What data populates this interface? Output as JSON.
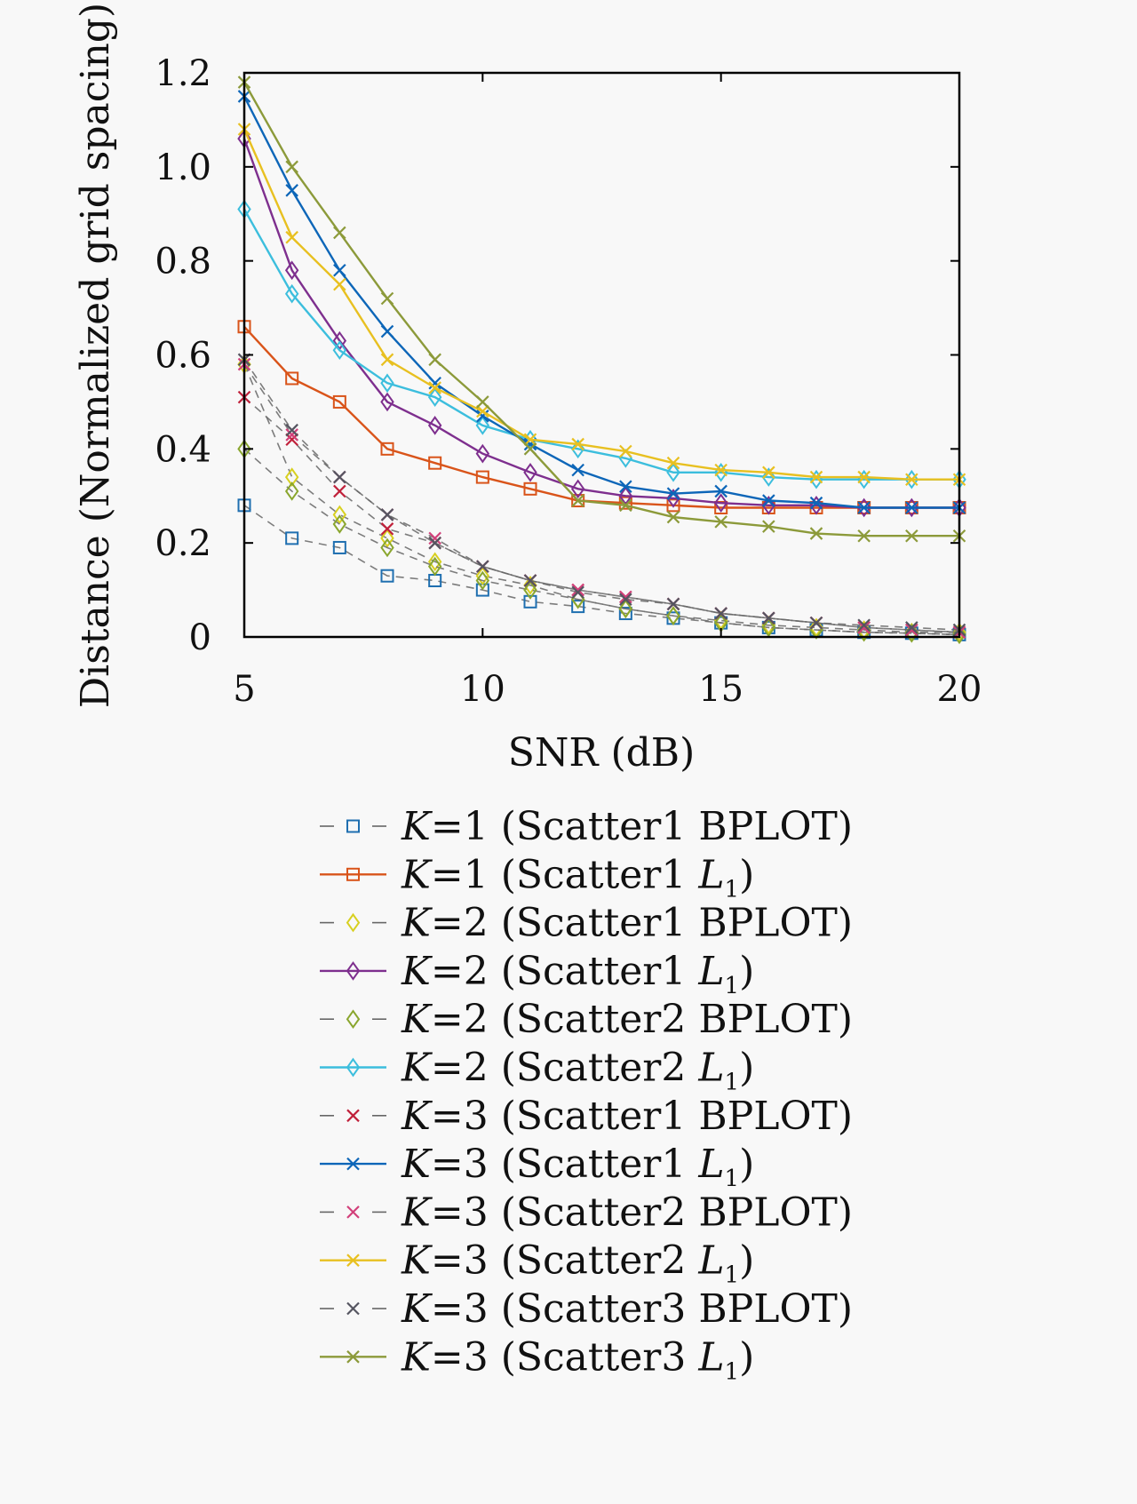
{
  "chart_data": {
    "type": "line",
    "title": "",
    "xlabel": "SNR (dB)",
    "ylabel": "Distance (Normalized grid spacing)",
    "xlim": [
      5,
      20
    ],
    "ylim": [
      0,
      1.2
    ],
    "xticks": [
      5,
      10,
      15,
      20
    ],
    "xtick_labels": [
      "5",
      "10",
      "15",
      "20"
    ],
    "yticks": [
      0,
      0.2,
      0.4,
      0.6,
      0.8,
      1.0,
      1.2
    ],
    "ytick_labels": [
      "0",
      "0.2",
      "0.4",
      "0.6",
      "0.8",
      "1.0",
      "1.2"
    ],
    "grid": false,
    "legend_position": "below",
    "x": [
      5,
      6,
      7,
      8,
      9,
      10,
      11,
      12,
      13,
      14,
      15,
      16,
      17,
      18,
      19,
      20
    ],
    "series": [
      {
        "name": "K=1 (Scatter1 BPLOT)",
        "k": "K",
        "rest": "=1 (Scatter1 BPLOT)",
        "sub": "",
        "color": "#1f6fb0",
        "marker": "square",
        "dash": true,
        "values": [
          0.28,
          0.21,
          0.19,
          0.13,
          0.12,
          0.1,
          0.075,
          0.065,
          0.05,
          0.04,
          0.03,
          0.02,
          0.015,
          0.01,
          0.008,
          0.005
        ]
      },
      {
        "name": "K=1 (Scatter1 L1)",
        "k": "K",
        "rest": "=1 (Scatter1 L",
        "sub": "1",
        "color": "#d9541a",
        "marker": "square",
        "dash": false,
        "values": [
          0.66,
          0.55,
          0.5,
          0.4,
          0.37,
          0.34,
          0.315,
          0.29,
          0.285,
          0.28,
          0.275,
          0.275,
          0.275,
          0.275,
          0.275,
          0.275
        ]
      },
      {
        "name": "K=2 (Scatter1 BPLOT)",
        "k": "K",
        "rest": "=2 (Scatter1 BPLOT)",
        "sub": "",
        "color": "#d8d020",
        "marker": "diamond",
        "dash": true,
        "values": [
          0.58,
          0.34,
          0.26,
          0.21,
          0.16,
          0.13,
          0.11,
          0.08,
          0.06,
          0.045,
          0.035,
          0.025,
          0.02,
          0.015,
          0.01,
          0.01
        ]
      },
      {
        "name": "K=2 (Scatter1 L1)",
        "k": "K",
        "rest": "=2 (Scatter1 L",
        "sub": "1",
        "color": "#7e2f8e",
        "marker": "diamond",
        "dash": false,
        "values": [
          1.06,
          0.78,
          0.63,
          0.5,
          0.45,
          0.39,
          0.35,
          0.315,
          0.3,
          0.295,
          0.285,
          0.28,
          0.28,
          0.275,
          0.275,
          0.275
        ]
      },
      {
        "name": "K=2 (Scatter2 BPLOT)",
        "k": "K",
        "rest": "=2 (Scatter2 BPLOT)",
        "sub": "",
        "color": "#8aa62e",
        "marker": "diamond",
        "dash": true,
        "values": [
          0.4,
          0.31,
          0.24,
          0.19,
          0.15,
          0.12,
          0.1,
          0.08,
          0.06,
          0.045,
          0.03,
          0.02,
          0.015,
          0.01,
          0.008,
          0.005
        ]
      },
      {
        "name": "K=2 (Scatter2 L1)",
        "k": "K",
        "rest": "=2 (Scatter2 L",
        "sub": "1",
        "color": "#3cbedd",
        "marker": "diamond",
        "dash": false,
        "values": [
          0.91,
          0.73,
          0.61,
          0.54,
          0.51,
          0.45,
          0.42,
          0.4,
          0.38,
          0.35,
          0.35,
          0.34,
          0.335,
          0.335,
          0.335,
          0.335
        ]
      },
      {
        "name": "K=3 (Scatter1 BPLOT)",
        "k": "K",
        "rest": "=3 (Scatter1 BPLOT)",
        "sub": "",
        "color": "#c0203a",
        "marker": "x",
        "dash": true,
        "values": [
          0.51,
          0.42,
          0.31,
          0.23,
          0.2,
          0.15,
          0.12,
          0.1,
          0.085,
          0.07,
          0.05,
          0.04,
          0.03,
          0.02,
          0.015,
          0.01
        ]
      },
      {
        "name": "K=3 (Scatter1 L1)",
        "k": "K",
        "rest": "=3 (Scatter1 L",
        "sub": "1",
        "color": "#0d66b8",
        "marker": "x",
        "dash": false,
        "values": [
          1.15,
          0.95,
          0.78,
          0.65,
          0.54,
          0.47,
          0.41,
          0.355,
          0.32,
          0.305,
          0.31,
          0.29,
          0.285,
          0.275,
          0.275,
          0.275
        ]
      },
      {
        "name": "K=3 (Scatter2 BPLOT)",
        "k": "K",
        "rest": "=3 (Scatter2 BPLOT)",
        "sub": "",
        "color": "#d2407a",
        "marker": "x",
        "dash": true,
        "values": [
          0.58,
          0.43,
          0.34,
          0.26,
          0.21,
          0.15,
          0.12,
          0.1,
          0.085,
          0.07,
          0.05,
          0.04,
          0.03,
          0.02,
          0.015,
          0.01
        ]
      },
      {
        "name": "K=3 (Scatter2 L1)",
        "k": "K",
        "rest": "=3 (Scatter2 L",
        "sub": "1",
        "color": "#e8c020",
        "marker": "x",
        "dash": false,
        "values": [
          1.08,
          0.85,
          0.75,
          0.59,
          0.53,
          0.48,
          0.42,
          0.41,
          0.395,
          0.37,
          0.355,
          0.35,
          0.34,
          0.34,
          0.335,
          0.335
        ]
      },
      {
        "name": "K=3 (Scatter3 BPLOT)",
        "k": "K",
        "rest": "=3 (Scatter3 BPLOT)",
        "sub": "",
        "color": "#555560",
        "marker": "x",
        "dash": true,
        "values": [
          0.59,
          0.44,
          0.34,
          0.26,
          0.2,
          0.15,
          0.12,
          0.095,
          0.08,
          0.07,
          0.05,
          0.04,
          0.03,
          0.025,
          0.02,
          0.015
        ]
      },
      {
        "name": "K=3 (Scatter3 L1)",
        "k": "K",
        "rest": "=3 (Scatter3 L",
        "sub": "1",
        "color": "#8c9a3a",
        "marker": "x",
        "dash": false,
        "values": [
          1.18,
          1.0,
          0.86,
          0.72,
          0.59,
          0.5,
          0.4,
          0.29,
          0.28,
          0.255,
          0.245,
          0.235,
          0.22,
          0.215,
          0.215,
          0.215
        ]
      }
    ]
  }
}
